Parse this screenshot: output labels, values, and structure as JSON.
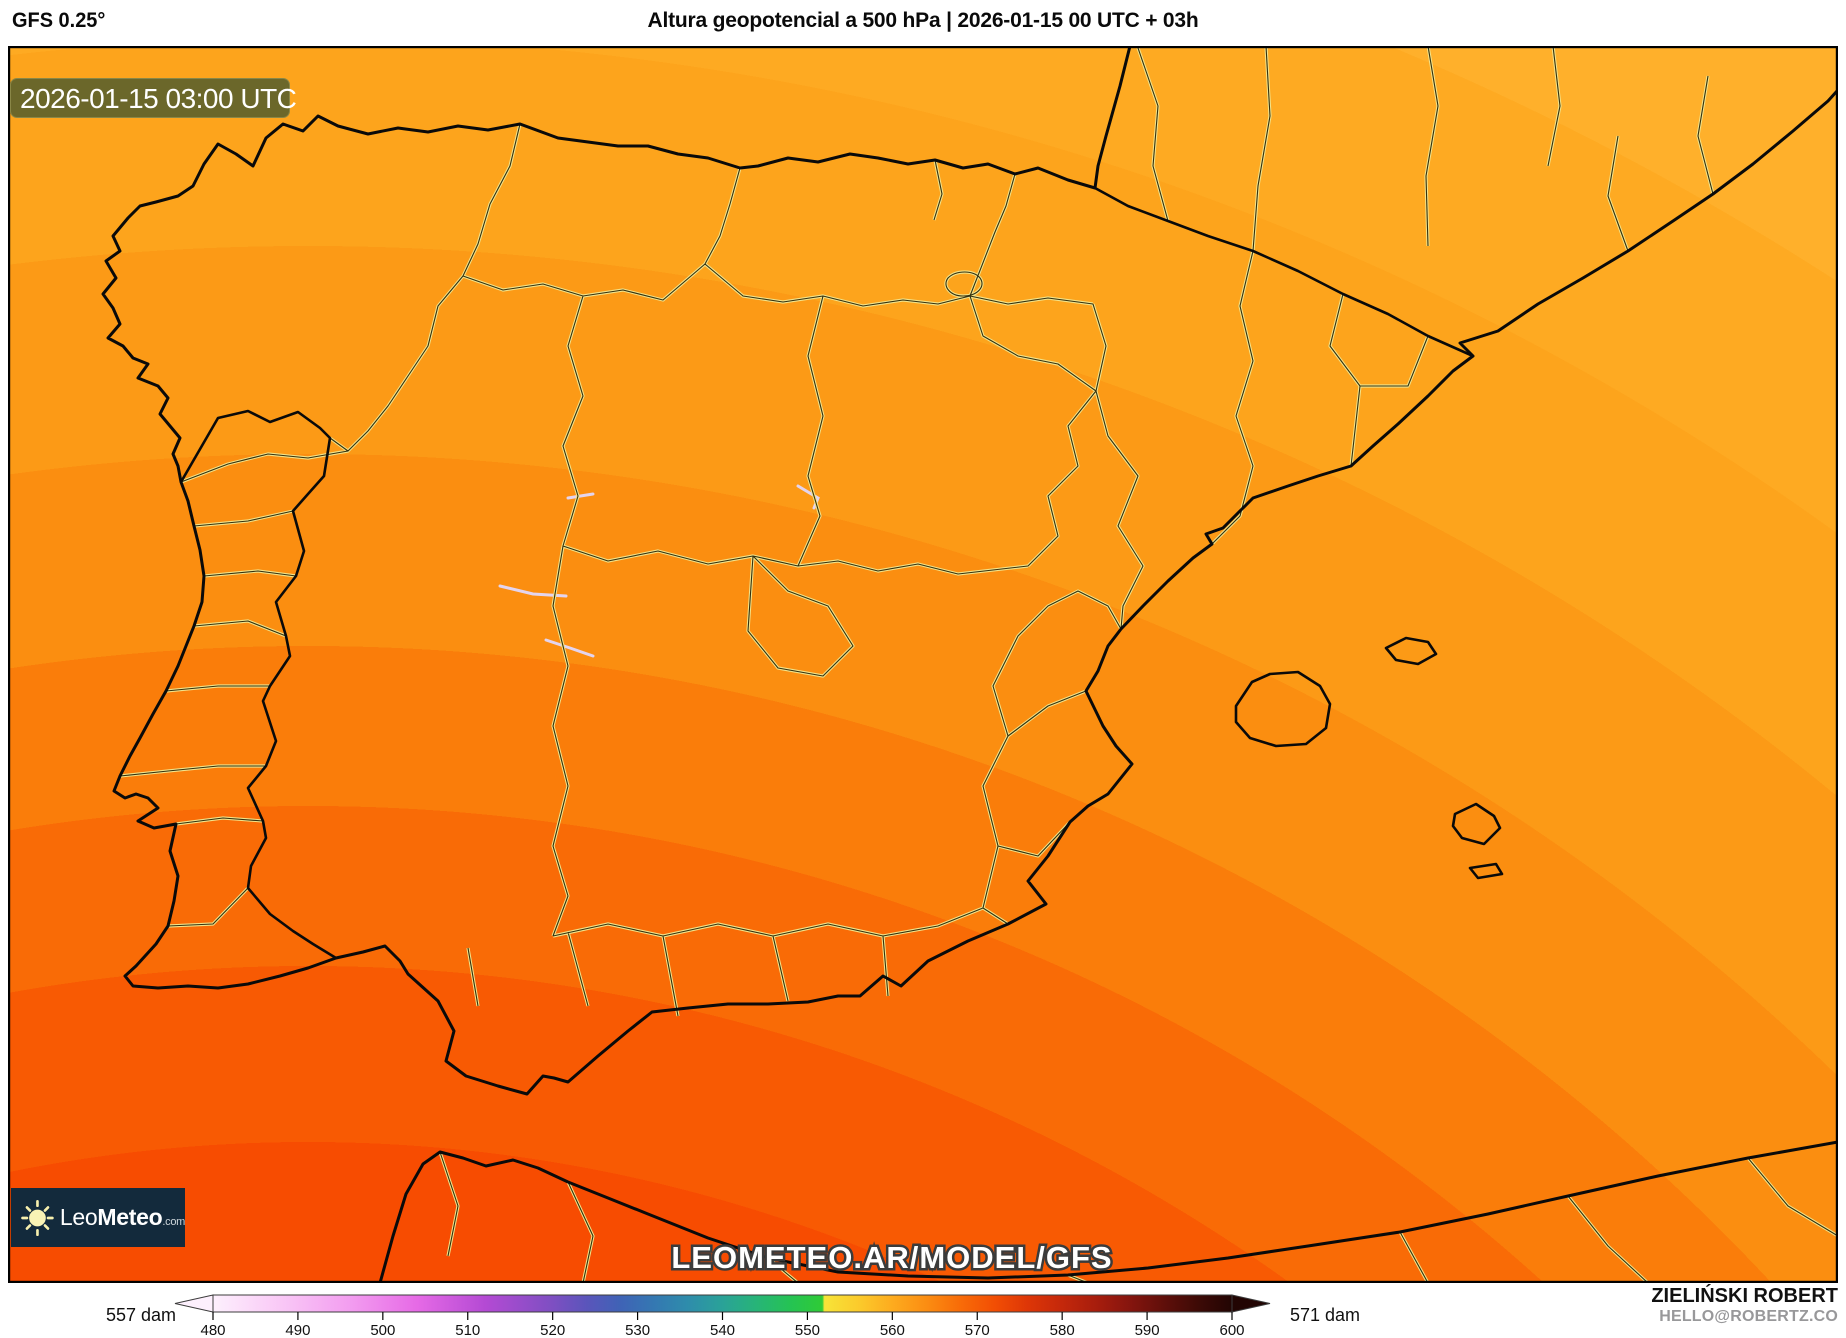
{
  "header": {
    "model": "GFS 0.25°",
    "title": "Altura geopotencial a 500 hPa | 2026-01-15 00 UTC + 03h"
  },
  "map": {
    "timestamp_badge": "2026-01-15 03:00 UTC",
    "watermark": "LEOMETEO.AR/MODEL/GFS",
    "region": "Iberian Peninsula",
    "field": "geopotential height 500 hPa",
    "unit": "dam"
  },
  "logo": {
    "sun_icon": "sun-icon",
    "leo": "Leo",
    "meteo": "Meteo",
    "tld": ".com"
  },
  "colorbar": {
    "min_label": "557 dam",
    "max_label": "571 dam",
    "ticks": [
      "480",
      "490",
      "500",
      "510",
      "520",
      "530",
      "540",
      "550",
      "560",
      "570",
      "580",
      "590",
      "600"
    ],
    "unit": "dam",
    "value_range": [
      480,
      600
    ]
  },
  "credits": {
    "author": "ZIELIŃSKI ROBERT",
    "contact": "HELLO@ROBERTZ.CO"
  },
  "colors": {
    "fill_min_dark_orange": "#f74c01",
    "fill_max_light_amber": "#ffb02b",
    "badge_bg": "#6b672a",
    "logo_bg": "#132a3c",
    "coastline": "#0a0a0a",
    "province_casing": "#f2e38a",
    "province_core": "#33300e",
    "scale_yellow_transition_dam": 552
  }
}
